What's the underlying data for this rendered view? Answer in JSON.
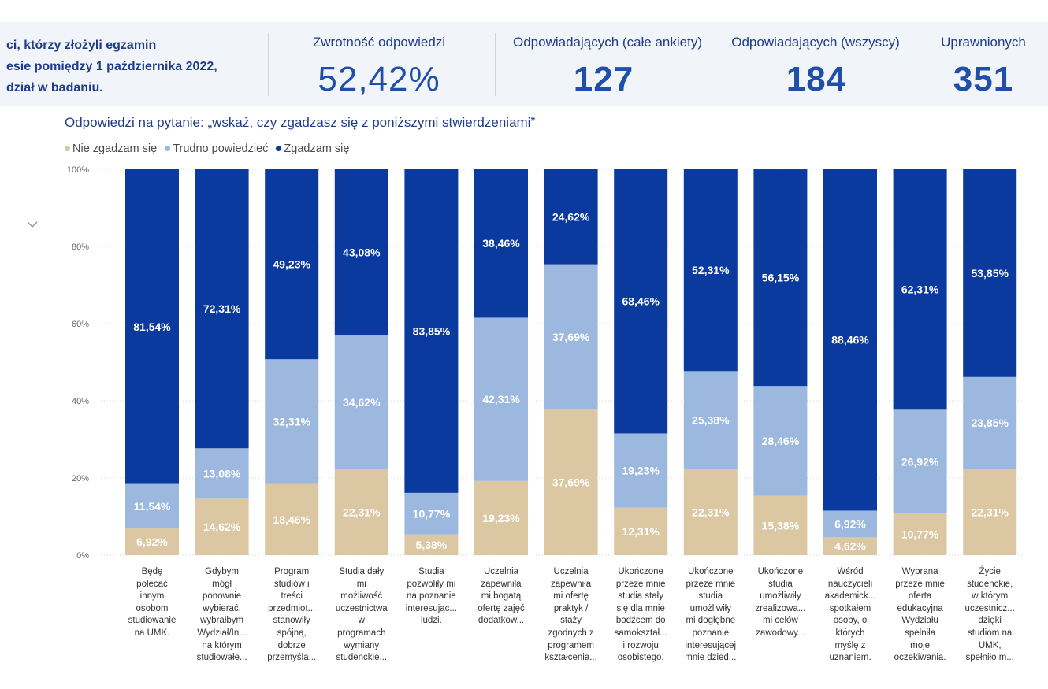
{
  "header": {
    "intro_lines": [
      "ci, którzy złożyli egzamin",
      "esie pomiędzy 1 października 2022,",
      "dział w badaniu."
    ],
    "kpis": [
      {
        "label": "Zwrotność odpowiedzi",
        "value": "52,42%"
      },
      {
        "label": "Odpowiadających (całe ankiety)",
        "value": "127"
      },
      {
        "label": "Odpowiadających (wszyscy)",
        "value": "184"
      },
      {
        "label": "Uprawnionych",
        "value": "351"
      }
    ]
  },
  "icons": {
    "collapse": "chevron-down-icon"
  },
  "colors": {
    "disagree": "#dbc8a3",
    "hard": "#9cb8de",
    "agree": "#0a3a9e",
    "kpi_text": "#1f4fa8"
  },
  "chart_data": {
    "type": "bar",
    "stacked": true,
    "title": "Odpowiedzi na pytanie: „wskaż, czy zgadzasz się z poniższymi stwierdzeniami”",
    "ylim": [
      0,
      100
    ],
    "y_ticks": [
      "0%",
      "20%",
      "40%",
      "60%",
      "80%",
      "100%"
    ],
    "legend_position": "top-left",
    "categories": [
      [
        "Będę",
        "polecać",
        "innym",
        "osobom",
        "studiowanie",
        "na UMK."
      ],
      [
        "Gdybym",
        "mógł",
        "ponownie",
        "wybierać,",
        "wybrałbym",
        "Wydział/In...",
        "na którym",
        "studiowałe..."
      ],
      [
        "Program",
        "studiów i",
        "treści",
        "przedmiot...",
        "stanowiły",
        "spójną,",
        "dobrze",
        "przemyśla..."
      ],
      [
        "Studia dały",
        "mi",
        "możliwość",
        "uczestnictwa",
        "w",
        "programach",
        "wymiany",
        "studenckie..."
      ],
      [
        "Studia",
        "pozwoliły mi",
        "na poznanie",
        "interesując...",
        "ludzi."
      ],
      [
        "Uczelnia",
        "zapewniła",
        "mi bogatą",
        "ofertę zajęć",
        "dodatkow..."
      ],
      [
        "Uczelnia",
        "zapewniła",
        "mi ofertę",
        "praktyk /",
        "staży",
        "zgodnych z",
        "programem",
        "kształcenia..."
      ],
      [
        "Ukończone",
        "przeze mnie",
        "studia stały",
        "się dla mnie",
        "bodźcem do",
        "samokształ...",
        "i rozwoju",
        "osobistego."
      ],
      [
        "Ukończone",
        "przeze mnie",
        "studia",
        "umożliwiły",
        "mi dogłębne",
        "poznanie",
        "interesującej",
        "mnie dzied..."
      ],
      [
        "Ukończone",
        "studia",
        "umożliwiły",
        "zrealizowa...",
        "mi celów",
        "zawodowy..."
      ],
      [
        "Wśród",
        "nauczycieli",
        "akademick...",
        "spotkałem",
        "osoby, o",
        "których",
        "myślę z",
        "uznaniem."
      ],
      [
        "Wybrana",
        "przeze mnie",
        "oferta",
        "edukacyjna",
        "Wydziału",
        "spełniła",
        "moje",
        "oczekiwania."
      ],
      [
        "Życie",
        "studenckie,",
        "w którym",
        "uczestnicz...",
        "dzięki",
        "studiom na",
        "UMK,",
        "spełniło m..."
      ]
    ],
    "series": [
      {
        "name": "Nie zgadzam się",
        "values": [
          6.92,
          14.62,
          18.46,
          22.31,
          5.38,
          19.23,
          37.69,
          12.31,
          22.31,
          15.38,
          4.62,
          10.77,
          22.31
        ],
        "labels": [
          "6,92%",
          "14,62%",
          "18,46%",
          "22,31%",
          "5,38%",
          "19,23%",
          "37,69%",
          "12,31%",
          "22,31%",
          "15,38%",
          "4,62%",
          "10,77%",
          "22,31%"
        ]
      },
      {
        "name": "Trudno powiedzieć",
        "values": [
          11.54,
          13.08,
          32.31,
          34.62,
          10.77,
          42.31,
          37.69,
          19.23,
          25.38,
          28.46,
          6.92,
          26.92,
          23.85
        ],
        "labels": [
          "11,54%",
          "13,08%",
          "32,31%",
          "34,62%",
          "10,77%",
          "42,31%",
          "37,69%",
          "19,23%",
          "25,38%",
          "28,46%",
          "6,92%",
          "26,92%",
          "23,85%"
        ]
      },
      {
        "name": "Zgadzam się",
        "values": [
          81.54,
          72.31,
          49.23,
          43.08,
          83.85,
          38.46,
          24.62,
          68.46,
          52.31,
          56.15,
          88.46,
          62.31,
          53.85
        ],
        "labels": [
          "81,54%",
          "72,31%",
          "49,23%",
          "43,08%",
          "83,85%",
          "38,46%",
          "24,62%",
          "68,46%",
          "52,31%",
          "56,15%",
          "88,46%",
          "62,31%",
          "53,85%"
        ]
      }
    ]
  }
}
